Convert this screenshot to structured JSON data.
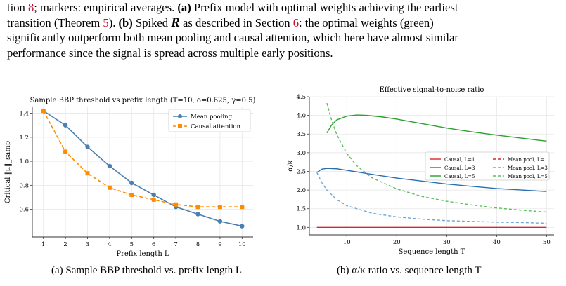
{
  "caption": {
    "line1_a": "tion ",
    "line1_ref": "8",
    "line1_b": "; markers: empirical averages. ",
    "a_label": "(a)",
    "line1_c": " Prefix model with optimal weights achieving the earliest",
    "line2_a": "transition (Theorem ",
    "line2_ref1": "5",
    "line2_b": ").  ",
    "b_label": "(b)",
    "line2_c": " Spiked ",
    "line2_R": "R",
    "line2_d": " as described in Section ",
    "line2_ref2": "6",
    "line2_e": ": the optimal weights (green)",
    "line3": "significantly outperform both mean pooling and causal attention, which here have almost similar",
    "line4": "performance since the signal is spread across multiple early positions."
  },
  "chart_data": [
    {
      "type": "line",
      "title": "Sample BBP threshold vs prefix length (T=10, δ=0.625, γ=0.5)",
      "xlabel": "Prefix length L",
      "ylabel": "Critical ‖μ‖_samp",
      "xlim": [
        0.5,
        10.5
      ],
      "ylim": [
        0.37,
        1.45
      ],
      "xticks": [
        1,
        2,
        3,
        4,
        5,
        6,
        7,
        8,
        9,
        10
      ],
      "yticks": [
        0.6,
        0.8,
        1.0,
        1.2,
        1.4
      ],
      "grid": true,
      "legend": "top-right",
      "series": [
        {
          "name": "Mean pooling",
          "color": "#4a7fb0",
          "style": "solid",
          "x": [
            1,
            2,
            3,
            4,
            5,
            6,
            7,
            8,
            9,
            10
          ],
          "values": [
            1.42,
            1.3,
            1.12,
            0.96,
            0.82,
            0.72,
            0.62,
            0.56,
            0.5,
            0.46
          ]
        },
        {
          "name": "Causal attention",
          "color": "#ff8c00",
          "style": "dashed",
          "x": [
            1,
            2,
            3,
            4,
            5,
            6,
            7,
            8,
            9,
            10
          ],
          "values": [
            1.42,
            1.08,
            0.9,
            0.78,
            0.72,
            0.68,
            0.64,
            0.62,
            0.62,
            0.62
          ]
        }
      ]
    },
    {
      "type": "line",
      "title": "Effective signal-to-noise ratio",
      "xlabel": "Sequence length T",
      "ylabel": "α/κ",
      "xlim": [
        2.5,
        51.5
      ],
      "ylim": [
        0.8,
        4.5
      ],
      "xticks": [
        10,
        20,
        30,
        40,
        50
      ],
      "yticks": [
        1.0,
        1.5,
        2.0,
        2.5,
        3.0,
        3.5,
        4.0,
        4.5
      ],
      "ytick_labels": [
        "1.0",
        "1.5",
        "2.0",
        "2.5",
        "3.0",
        "3.5",
        "4.0",
        "4.5"
      ],
      "grid": true,
      "legend": "center-right",
      "series": [
        {
          "name": "Causal, L=1",
          "color": "#d62728",
          "style": "solid",
          "x": [
            4,
            10,
            20,
            30,
            40,
            50
          ],
          "values": [
            1.0,
            1.0,
            1.0,
            1.0,
            1.0,
            1.0
          ]
        },
        {
          "name": "Mean pool, L=1",
          "color": "#d62728",
          "style": "dashed",
          "x": [],
          "values": []
        },
        {
          "name": "Causal, L=3",
          "color": "#2a6fb0",
          "style": "solid",
          "x": [
            4,
            5,
            6,
            8,
            10,
            15,
            20,
            25,
            30,
            35,
            40,
            45,
            50
          ],
          "values": [
            2.47,
            2.56,
            2.58,
            2.57,
            2.53,
            2.42,
            2.32,
            2.24,
            2.16,
            2.1,
            2.04,
            2.0,
            1.96
          ]
        },
        {
          "name": "Mean pool, L=3",
          "color": "#6fa6d6",
          "style": "dashed",
          "x": [
            4,
            5,
            6,
            8,
            10,
            15,
            20,
            25,
            30,
            35,
            40,
            45,
            50
          ],
          "values": [
            2.47,
            2.2,
            2.0,
            1.74,
            1.58,
            1.38,
            1.28,
            1.22,
            1.18,
            1.16,
            1.14,
            1.13,
            1.11
          ]
        },
        {
          "name": "Causal, L=5",
          "color": "#2ca02c",
          "style": "solid",
          "x": [
            6,
            7,
            8,
            10,
            12,
            14,
            17,
            20,
            25,
            30,
            35,
            40,
            45,
            50
          ],
          "values": [
            3.53,
            3.75,
            3.88,
            3.98,
            4.01,
            4.0,
            3.96,
            3.9,
            3.78,
            3.66,
            3.56,
            3.47,
            3.39,
            3.31
          ]
        },
        {
          "name": "Mean pool, L=5",
          "color": "#5cc05c",
          "style": "dashed",
          "x": [
            6,
            7,
            8,
            10,
            12,
            15,
            20,
            25,
            30,
            35,
            40,
            45,
            50
          ],
          "values": [
            4.33,
            3.85,
            3.48,
            2.98,
            2.65,
            2.33,
            2.03,
            1.83,
            1.7,
            1.6,
            1.52,
            1.46,
            1.41
          ]
        }
      ]
    }
  ],
  "subcaptions": {
    "a": "(a) Sample BBP threshold vs. prefix length L",
    "b": "(b) α/κ ratio vs. sequence length T"
  }
}
